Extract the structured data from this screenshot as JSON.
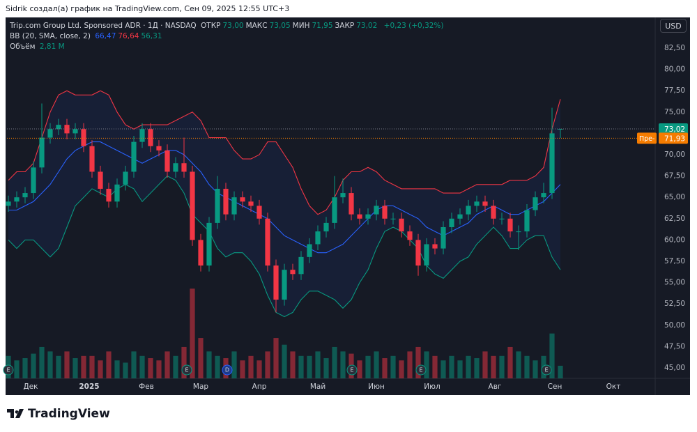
{
  "header": {
    "text": "Sidrik создал(а) график на TradingView.com, Сен 09, 2025 12:55 UTC+3"
  },
  "legend": {
    "symbol": "Trip.com Group Ltd. Sponsored ADR · 1Д · NASDAQ",
    "fields": [
      {
        "label": "ОТКР",
        "value": "73,00"
      },
      {
        "label": "МАКС",
        "value": "73,05"
      },
      {
        "label": "МИН",
        "value": "71,95"
      },
      {
        "label": "ЗАКР",
        "value": "73,02"
      }
    ],
    "change": "+0,23 (+0,32%)",
    "bb": {
      "name": "BB (20, SMA, close, 2)",
      "values": [
        {
          "value": "66,47",
          "color": "#2962ff"
        },
        {
          "value": "76,64",
          "color": "#f23645"
        },
        {
          "value": "56,31",
          "color": "#089981"
        }
      ]
    },
    "volume": {
      "name": "Объём",
      "value": "2,81 M"
    }
  },
  "currency": "USD",
  "footer": {
    "brand": "TradingView"
  },
  "chart_data": {
    "type": "candlestick",
    "x": [
      0,
      3,
      6,
      9,
      12,
      15,
      18,
      21,
      24,
      27,
      30,
      33,
      36,
      39,
      42,
      45,
      48,
      51,
      54,
      57,
      60,
      63,
      66,
      69,
      72,
      75,
      78,
      81,
      84,
      87,
      90,
      93,
      96,
      99,
      102,
      105,
      108,
      111,
      114,
      117,
      120,
      123,
      126,
      129,
      132,
      135,
      138,
      141,
      144,
      147,
      150,
      153,
      156,
      159,
      162,
      165,
      168,
      171,
      174,
      177,
      180,
      183,
      186,
      189,
      192,
      195,
      198
    ],
    "open": [
      64,
      64.5,
      65,
      65.5,
      68.5,
      72,
      73,
      73.5,
      72.5,
      73,
      71,
      68,
      66,
      64.5,
      66.5,
      68,
      71.5,
      73,
      71,
      70.5,
      68,
      69,
      68,
      60,
      57,
      62,
      66,
      63,
      65,
      64.5,
      64,
      62.5,
      57,
      53,
      56.5,
      56,
      58,
      59.5,
      61,
      62,
      65,
      65.5,
      63,
      62.5,
      63,
      64,
      62.5,
      62.5,
      61,
      60,
      57,
      59.5,
      59,
      61.5,
      62.5,
      63,
      64,
      64.5,
      64,
      62.5,
      62.5,
      61,
      61,
      63.5,
      65,
      65.5,
      73
    ],
    "high": [
      65.2,
      65.7,
      66.2,
      69.2,
      76,
      73.7,
      74.2,
      74.2,
      73.7,
      73.7,
      71.7,
      68.7,
      66.7,
      67.2,
      68.7,
      72.2,
      73.7,
      73.7,
      71.7,
      71.2,
      69.7,
      72,
      68.7,
      60.7,
      62.7,
      67.5,
      66.7,
      65.7,
      65.7,
      65.2,
      64.7,
      63.2,
      57.7,
      57.2,
      57.2,
      58.7,
      60.2,
      61.7,
      62.7,
      67.5,
      67.2,
      66.2,
      63.7,
      63.7,
      64.7,
      64.7,
      63.2,
      63.2,
      61.7,
      60.7,
      60.2,
      60.2,
      62.2,
      63.2,
      63.7,
      64.7,
      65.2,
      65.2,
      64.7,
      63.2,
      63.2,
      61.7,
      64.2,
      65.7,
      66.7,
      75.5,
      73.05
    ],
    "low": [
      63.3,
      63.8,
      64.3,
      64.8,
      67.8,
      71.3,
      72.3,
      71.8,
      71.8,
      70.3,
      67.3,
      65.3,
      63.8,
      63.8,
      65.8,
      67.3,
      70.8,
      70.3,
      69.8,
      67.3,
      67.3,
      67.3,
      59.3,
      56.3,
      56.3,
      61.3,
      62.3,
      62.3,
      63.8,
      63.3,
      61.8,
      56.3,
      51.5,
      52.3,
      55.3,
      55.3,
      57.3,
      58.8,
      60.3,
      61.3,
      64.3,
      62.3,
      61.8,
      61.8,
      62.3,
      61.8,
      61.8,
      60.3,
      59.3,
      55.8,
      56.3,
      58.3,
      58.3,
      60.8,
      61.8,
      62.3,
      63.3,
      63.3,
      61.8,
      61.8,
      60.3,
      58.8,
      60.3,
      62.8,
      64.3,
      64.8,
      71.95
    ],
    "close": [
      64.5,
      65,
      65.5,
      68.5,
      72,
      73,
      73.5,
      72.5,
      73,
      71,
      68,
      66,
      64.5,
      66.5,
      68,
      71.5,
      73,
      71,
      70.5,
      68,
      69,
      68,
      60,
      57,
      62,
      66,
      63,
      65,
      64.5,
      64,
      62.5,
      57,
      53,
      56.5,
      56,
      58,
      59.5,
      61,
      62,
      65,
      65.5,
      63,
      62.5,
      63,
      64,
      62.5,
      62.5,
      61,
      60,
      57,
      59.5,
      59,
      61.5,
      62.5,
      63,
      64,
      64.5,
      64,
      62.5,
      62.5,
      61,
      61,
      63.5,
      65,
      65.5,
      72.5,
      73.02
    ],
    "volume": [
      5,
      4,
      4.5,
      5.5,
      7,
      6,
      5,
      6,
      4.5,
      5,
      5,
      4,
      6,
      4,
      3.5,
      6,
      5,
      4.5,
      4,
      6,
      5,
      7,
      20,
      9,
      6,
      5,
      4.5,
      6,
      4,
      5,
      4,
      6,
      9,
      7.5,
      6,
      5,
      5,
      6,
      4.5,
      7,
      6,
      5.5,
      4,
      5,
      6,
      4.5,
      5,
      4,
      6,
      7,
      6,
      5,
      4,
      5,
      4,
      5,
      4.5,
      6,
      5,
      5,
      7,
      6,
      5,
      4,
      5,
      10,
      2.81
    ],
    "volume_ylim": [
      0,
      80
    ],
    "bb_upper": [
      67,
      68,
      68,
      69,
      72,
      75,
      77,
      77.5,
      77,
      77,
      77,
      77.5,
      77,
      75,
      73.5,
      73,
      73.5,
      73.5,
      73.5,
      73.5,
      74,
      74.5,
      75,
      74,
      72,
      72,
      72,
      70.5,
      69.5,
      69.5,
      70,
      71.5,
      71.5,
      70,
      68.5,
      66,
      64,
      63,
      63.5,
      65,
      67,
      68,
      68,
      68.5,
      68,
      67,
      66.5,
      66,
      66,
      66,
      66,
      66,
      65.5,
      65.5,
      65.5,
      66,
      66.5,
      66.5,
      66.5,
      66.5,
      67,
      67,
      67,
      67.5,
      68.5,
      73,
      76.5
    ],
    "bb_middle": [
      63.5,
      63.5,
      64,
      64.5,
      65.5,
      66.5,
      68,
      69.5,
      70.5,
      71,
      71.5,
      71.5,
      71,
      70.5,
      70,
      69.5,
      69,
      69.5,
      70,
      70.5,
      70.5,
      70,
      69,
      68,
      66.5,
      65.5,
      65,
      64.5,
      64,
      63.5,
      63,
      62.5,
      61.5,
      60.5,
      60,
      59.5,
      59,
      58.5,
      58.5,
      59,
      59.5,
      60.5,
      61.5,
      62.5,
      63.5,
      64,
      64,
      63.5,
      63,
      62.5,
      61.5,
      61,
      60.5,
      61,
      61.5,
      62,
      63,
      63.5,
      64,
      63.5,
      63,
      63,
      63.5,
      64,
      64.5,
      65.5,
      66.5
    ],
    "bb_lower": [
      60,
      59,
      60,
      60,
      59,
      58,
      59,
      61.5,
      64,
      65,
      66,
      65.5,
      65,
      66,
      66.5,
      66,
      64.5,
      65.5,
      66.5,
      67.5,
      67,
      65.5,
      63,
      62,
      61,
      59,
      58,
      58.5,
      58.5,
      57.5,
      56,
      53.5,
      51.5,
      51,
      51.5,
      53,
      54,
      54,
      53.5,
      53,
      52,
      53,
      55,
      56.5,
      59,
      61,
      61.5,
      61,
      60,
      59,
      57,
      56,
      55.5,
      56.5,
      57.5,
      58,
      59.5,
      60.5,
      61.5,
      60.5,
      59,
      59,
      60,
      60.5,
      60.5,
      58,
      56.5
    ],
    "up_color": "#089981",
    "down_color": "#f23645",
    "bb_colors": {
      "upper": "#f23645",
      "middle": "#2962ff",
      "lower": "#089981"
    },
    "xlim": [
      -0.5,
      232
    ],
    "xticks": [
      {
        "value": 8,
        "label": "Дек"
      },
      {
        "value": 29,
        "label": "2025"
      },
      {
        "value": 49.5,
        "label": "Фев"
      },
      {
        "value": 69,
        "label": "Мар"
      },
      {
        "value": 90,
        "label": "Апр"
      },
      {
        "value": 111,
        "label": "Май"
      },
      {
        "value": 132,
        "label": "Июн"
      },
      {
        "value": 152,
        "label": "Июл"
      },
      {
        "value": 174.5,
        "label": "Авг"
      },
      {
        "value": 196,
        "label": "Сен"
      },
      {
        "value": 217,
        "label": "Окт"
      }
    ],
    "ylim": [
      43.77,
      85.85
    ],
    "yticks": [
      {
        "value": 45,
        "label": "45,00"
      },
      {
        "value": 47.5,
        "label": "47,50"
      },
      {
        "value": 50,
        "label": "50,00"
      },
      {
        "value": 52.5,
        "label": "52,50"
      },
      {
        "value": 55,
        "label": "55,00"
      },
      {
        "value": 57.5,
        "label": "57,50"
      },
      {
        "value": 60,
        "label": "60,00"
      },
      {
        "value": 62.5,
        "label": "62,50"
      },
      {
        "value": 65,
        "label": "65,00"
      },
      {
        "value": 67.5,
        "label": "67,50"
      },
      {
        "value": 70,
        "label": "70,00"
      },
      {
        "value": 72.5,
        "label": "72,50"
      },
      {
        "value": 75,
        "label": "75,00"
      },
      {
        "value": 77.5,
        "label": "77,50"
      },
      {
        "value": 80,
        "label": "80,00"
      },
      {
        "value": 82.5,
        "label": "82,50"
      }
    ],
    "grid": false,
    "last_price": {
      "value": 73.02,
      "label": "73,02",
      "color": "#089981"
    },
    "premarket": {
      "value": 71.93,
      "label": "71,93",
      "tag": "Пре-",
      "color": "#f57c00"
    }
  }
}
